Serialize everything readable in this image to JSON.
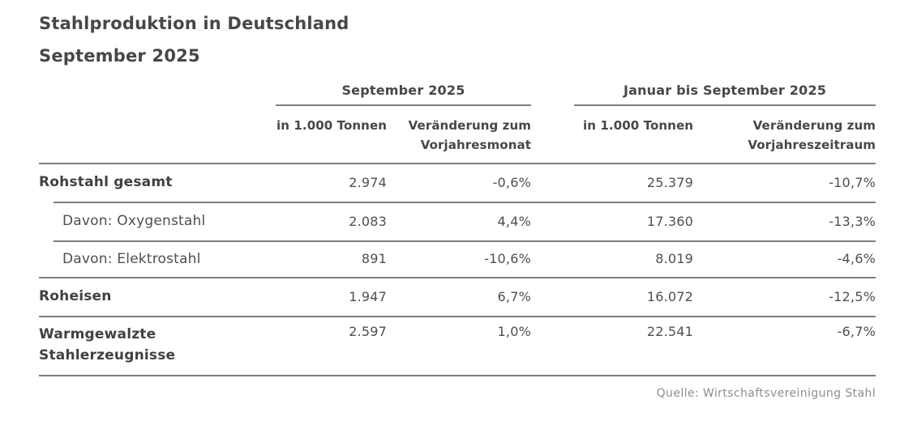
{
  "title": {
    "line1": "Stahlproduktion in Deutschland",
    "line2": "September 2025"
  },
  "table": {
    "groups": [
      {
        "label": "September 2025",
        "col1": "in 1.000 Tonnen",
        "col2": "Veränderung zum Vorjahresmonat"
      },
      {
        "label": "Januar bis September 2025",
        "col1": "in 1.000 Tonnen",
        "col2": "Veränderung zum Vorjahreszeitraum"
      }
    ],
    "rows": [
      {
        "label": "Rohstahl gesamt",
        "sep_tonnen": "2.974",
        "sep_change": "-0,6%",
        "ytd_tonnen": "25.379",
        "ytd_change": "-10,7%"
      },
      {
        "label": "Davon: Oxygenstahl",
        "sep_tonnen": "2.083",
        "sep_change": "4,4%",
        "ytd_tonnen": "17.360",
        "ytd_change": "-13,3%"
      },
      {
        "label": "Davon: Elektrostahl",
        "sep_tonnen": "891",
        "sep_change": "-10,6%",
        "ytd_tonnen": "8.019",
        "ytd_change": "-4,6%"
      },
      {
        "label": "Roheisen",
        "sep_tonnen": "1.947",
        "sep_change": "6,7%",
        "ytd_tonnen": "16.072",
        "ytd_change": "-12,5%"
      },
      {
        "label": "Warmgewalzte Stahlerzeugnisse",
        "sep_tonnen": "2.597",
        "sep_change": "1,0%",
        "ytd_tonnen": "22.541",
        "ytd_change": "-6,7%"
      }
    ]
  },
  "source": "Quelle: Wirtschaftsvereinigung Stahl",
  "colors": {
    "background": "#ffffff",
    "title_text": "#474747",
    "body_text": "#4f4f4f",
    "rule": "#7d7d7d",
    "source_text": "#8e8e8e"
  },
  "chart_data": {
    "type": "table",
    "title": "Stahlproduktion in Deutschland September 2025",
    "column_groups": [
      "September 2025",
      "Januar bis September 2025"
    ],
    "columns": [
      "September 2025 – in 1.000 Tonnen",
      "September 2025 – Veränderung zum Vorjahresmonat (%)",
      "Januar bis September 2025 – in 1.000 Tonnen",
      "Januar bis September 2025 – Veränderung zum Vorjahreszeitraum (%)"
    ],
    "rows": [
      {
        "label": "Rohstahl gesamt",
        "values": [
          2974,
          -0.6,
          25379,
          -10.7
        ]
      },
      {
        "label": "Davon: Oxygenstahl",
        "values": [
          2083,
          4.4,
          17360,
          -13.3
        ]
      },
      {
        "label": "Davon: Elektrostahl",
        "values": [
          891,
          -10.6,
          8019,
          -4.6
        ]
      },
      {
        "label": "Roheisen",
        "values": [
          1947,
          6.7,
          16072,
          -12.5
        ]
      },
      {
        "label": "Warmgewalzte Stahlerzeugnisse",
        "values": [
          2597,
          1.0,
          22541,
          -6.7
        ]
      }
    ],
    "source": "Quelle: Wirtschaftsvereinigung Stahl"
  }
}
